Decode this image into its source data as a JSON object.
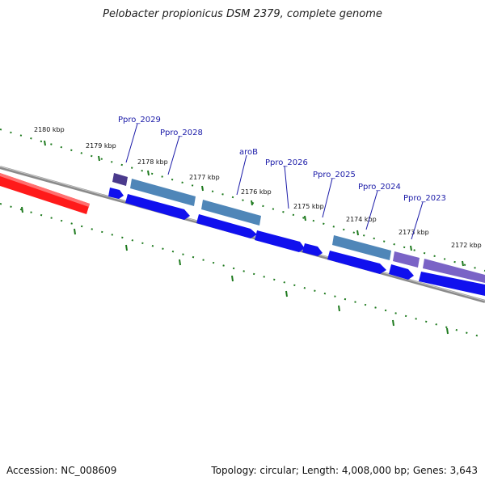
{
  "header": {
    "title": "Pelobacter propionicus DSM 2379, complete genome"
  },
  "footer": {
    "accession": "Accession: NC_008609",
    "summary": "Topology: circular; Length: 4,008,000 bp; Genes: 3,643"
  },
  "scale": {
    "labels": [
      "2180 kbp",
      "2179 kbp",
      "2178 kbp",
      "2177 kbp",
      "2176 kbp",
      "2175 kbp",
      "2174 kbp",
      "2173 kbp",
      "2172 kbp"
    ]
  },
  "genes": {
    "labels": [
      "Ppro_2029",
      "Ppro_2028",
      "aroB",
      "Ppro_2026",
      "Ppro_2025",
      "Ppro_2024",
      "Ppro_2023"
    ]
  },
  "colors": {
    "backbone": "#8a8a8a",
    "highlight": "#ff1a1a",
    "cds": "#1010ee",
    "feature_steel": "#4f86b8",
    "feature_purple": "#7a63c6",
    "feature_dark_purple": "#4a3a8c",
    "tick": "#1e7a1e",
    "label": "#1a1aa8"
  }
}
